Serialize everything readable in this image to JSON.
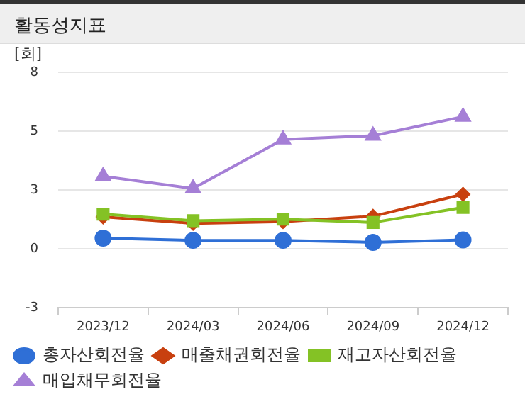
{
  "chart_data": {
    "type": "line",
    "title": "활동성지표",
    "ylabel": "[회]",
    "categories": [
      "2023/12",
      "2024/03",
      "2024/06",
      "2024/09",
      "2024/12"
    ],
    "series": [
      {
        "name": "총자산회전율",
        "color": "#2f6fd6",
        "marker": "circle",
        "values": [
          0.49,
          0.39,
          0.39,
          0.3,
          0.41
        ]
      },
      {
        "name": "매출채권회전율",
        "color": "#c8400f",
        "marker": "diamond",
        "values": [
          1.45,
          1.16,
          1.24,
          1.48,
          2.48
        ]
      },
      {
        "name": "재고자산회전율",
        "color": "#84c225",
        "marker": "square",
        "values": [
          1.58,
          1.28,
          1.35,
          1.2,
          1.88
        ]
      },
      {
        "name": "매입채무회전율",
        "color": "#a57fd6",
        "marker": "triangle",
        "values": [
          3.29,
          2.74,
          4.96,
          5.13,
          5.99
        ]
      }
    ],
    "ylim": [
      -2.667,
      8
    ],
    "yticks": [
      {
        "value": -2.667,
        "label": "-3"
      },
      {
        "value": 0,
        "label": "0"
      },
      {
        "value": 2.667,
        "label": "3"
      },
      {
        "value": 5.333,
        "label": "5"
      },
      {
        "value": 8,
        "label": "8"
      }
    ],
    "grid": "y",
    "legend": "bottom"
  }
}
